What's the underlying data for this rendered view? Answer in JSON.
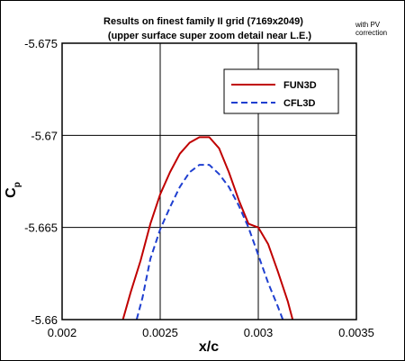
{
  "chart_data": {
    "type": "line",
    "title": "Results on finest family II grid (7169x2049)",
    "subtitle": "(upper surface super zoom detail near L.E.)",
    "note": [
      "with PV",
      "correction"
    ],
    "xlabel": "x/c",
    "ylabel": "C",
    "ylabel_sub": "p",
    "xlim": [
      0.002,
      0.0035
    ],
    "ylim": [
      -5.66,
      -5.675
    ],
    "y_axis_reversed": true,
    "grid": true,
    "legend_position": "top-right",
    "x_ticks": [
      {
        "value": 0.002,
        "label": "0.002"
      },
      {
        "value": 0.0025,
        "label": "0.0025"
      },
      {
        "value": 0.003,
        "label": "0.003"
      },
      {
        "value": 0.0035,
        "label": "0.0035"
      }
    ],
    "y_ticks": [
      {
        "value": -5.675,
        "label": "-5.675"
      },
      {
        "value": -5.67,
        "label": "-5.67"
      },
      {
        "value": -5.665,
        "label": "-5.665"
      },
      {
        "value": -5.66,
        "label": "-5.66"
      }
    ],
    "series": [
      {
        "name": "FUN3D",
        "color": "#c00000",
        "dash": "solid",
        "x": [
          0.00231,
          0.00235,
          0.0024,
          0.00245,
          0.0025,
          0.00255,
          0.0026,
          0.00265,
          0.0027,
          0.00275,
          0.0028,
          0.00285,
          0.0029,
          0.00295,
          0.003,
          0.00305,
          0.0031,
          0.00315,
          0.003175
        ],
        "y": [
          -5.66,
          -5.6615,
          -5.6632,
          -5.6652,
          -5.6668,
          -5.668,
          -5.669,
          -5.6696,
          -5.6699,
          -5.6699,
          -5.6693,
          -5.668,
          -5.6665,
          -5.6652,
          -5.665,
          -5.6641,
          -5.6626,
          -5.661,
          -5.66
        ]
      },
      {
        "name": "CFL3D",
        "color": "#1f3fd0",
        "dash": "dashed",
        "x": [
          0.00238,
          0.00241,
          0.00245,
          0.0025,
          0.00255,
          0.0026,
          0.00265,
          0.0027,
          0.00275,
          0.0028,
          0.00285,
          0.0029,
          0.00295,
          0.003,
          0.00305,
          0.0031,
          0.003125
        ],
        "y": [
          -5.66,
          -5.6612,
          -5.6633,
          -5.6649,
          -5.6661,
          -5.6672,
          -5.668,
          -5.6684,
          -5.6684,
          -5.6679,
          -5.6672,
          -5.6662,
          -5.665,
          -5.6635,
          -5.662,
          -5.6607,
          -5.66
        ]
      }
    ]
  }
}
